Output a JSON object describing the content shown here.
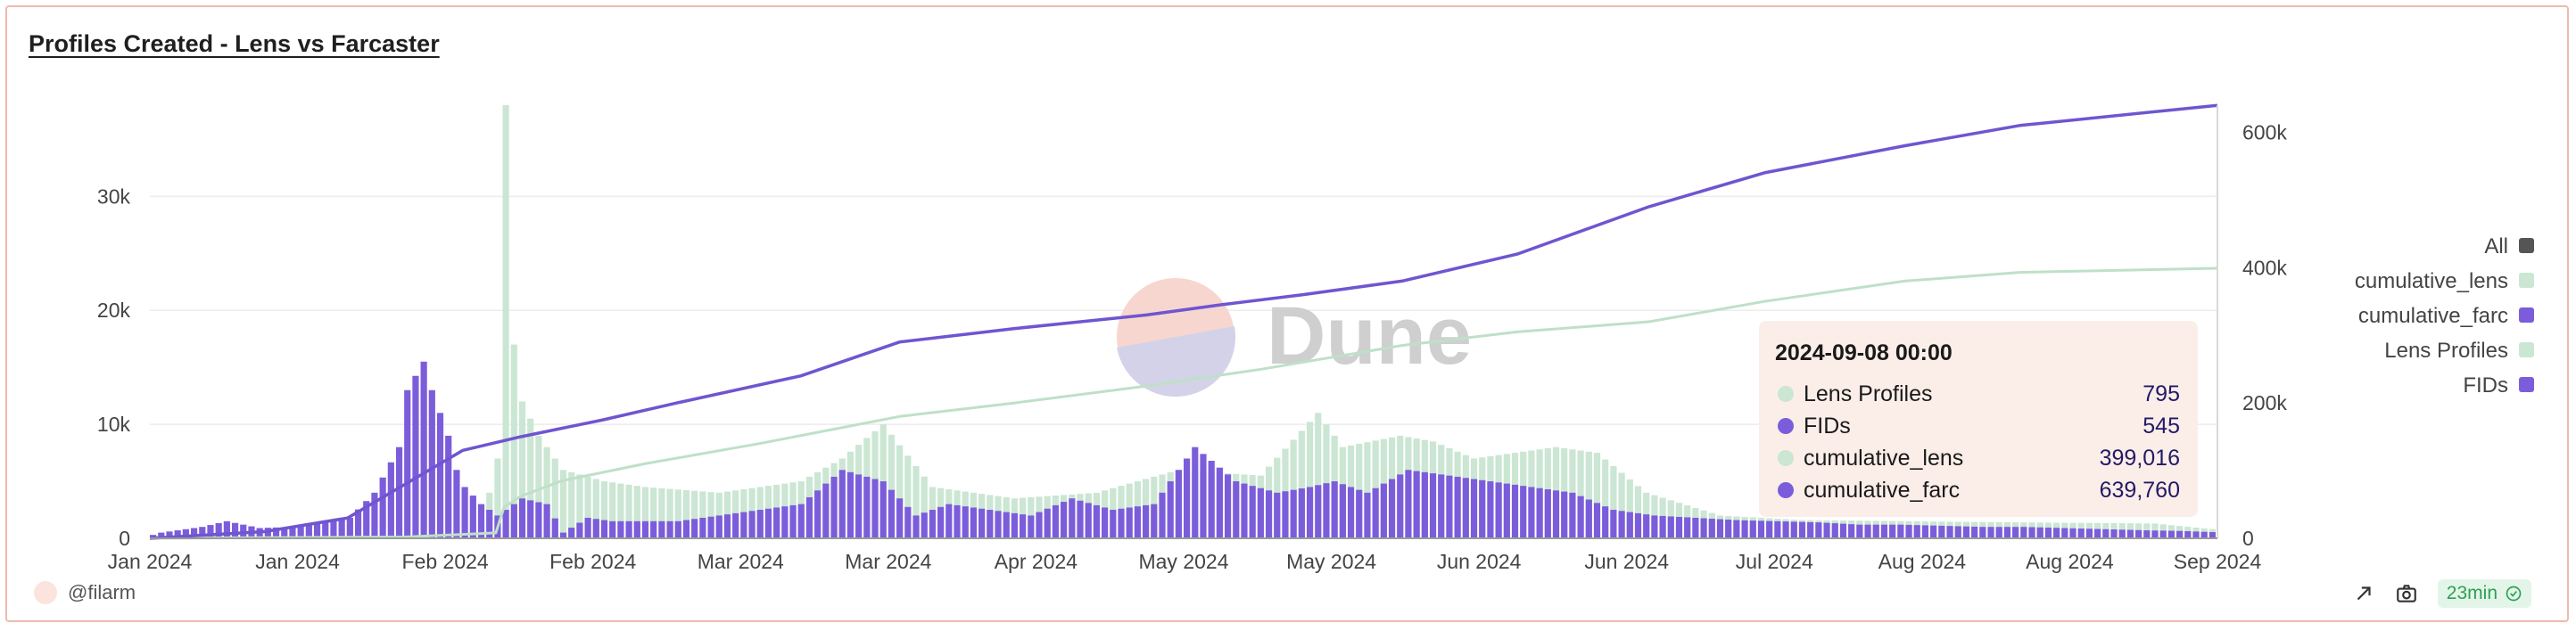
{
  "title": "Profiles Created - Lens vs Farcaster",
  "watermark": "Dune",
  "author": "@filarm",
  "refresh": "23min",
  "icons": [
    "share-icon",
    "camera-icon",
    "check-circle-icon"
  ],
  "colors": {
    "fids": "#7b5ddb",
    "lens_profiles": "#cbe6d3",
    "cumulative_farc": "#6f55d0",
    "cumulative_lens": "#c9e3cf",
    "tooltip_bg": "#fbeee9",
    "all_swatch": "#555555"
  },
  "legend": [
    {
      "label": "All",
      "color": "#555555"
    },
    {
      "label": "cumulative_lens",
      "color": "#cbe6d3"
    },
    {
      "label": "cumulative_farc",
      "color": "#7b5ddb"
    },
    {
      "label": "Lens Profiles",
      "color": "#cbe6d3"
    },
    {
      "label": "FIDs",
      "color": "#7b5ddb"
    }
  ],
  "tooltip": {
    "date": "2024-09-08 00:00",
    "rows": [
      {
        "label": "Lens Profiles",
        "value": "795",
        "color": "#cbe6d3"
      },
      {
        "label": "FIDs",
        "value": "545",
        "color": "#7b5ddb"
      },
      {
        "label": "cumulative_lens",
        "value": "399,016",
        "color": "#cbe6d3"
      },
      {
        "label": "cumulative_farc",
        "value": "639,760",
        "color": "#7b5ddb"
      }
    ]
  },
  "chart_data": {
    "type": "bar",
    "x_tick_labels": [
      "Jan 2024",
      "Jan 2024",
      "Feb 2024",
      "Feb 2024",
      "Mar 2024",
      "Mar 2024",
      "Apr 2024",
      "May 2024",
      "May 2024",
      "Jun 2024",
      "Jun 2024",
      "Jul 2024",
      "Aug 2024",
      "Aug 2024",
      "Sep 2024"
    ],
    "y_left_ticks": [
      "0",
      "10k",
      "20k",
      "30k"
    ],
    "y_left_range": [
      0,
      38000
    ],
    "y_right_ticks": [
      "0",
      "200k",
      "400k",
      "600k"
    ],
    "y_right_range": [
      0,
      640000
    ],
    "x_range": [
      "2024-01-01",
      "2024-09-08"
    ],
    "series": [
      {
        "name": "FIDs",
        "axis": "left",
        "kind": "bar",
        "x": [
          "2024-01-01",
          "2024-01-02",
          "2024-01-04",
          "2024-01-07",
          "2024-01-10",
          "2024-01-14",
          "2024-01-18",
          "2024-01-22",
          "2024-01-25",
          "2024-01-28",
          "2024-01-31",
          "2024-02-01",
          "2024-02-03",
          "2024-02-04",
          "2024-02-06",
          "2024-02-07",
          "2024-02-08",
          "2024-02-10",
          "2024-02-12",
          "2024-02-15",
          "2024-02-18",
          "2024-02-20",
          "2024-02-23",
          "2024-02-26",
          "2024-03-01",
          "2024-03-05",
          "2024-03-10",
          "2024-03-15",
          "2024-03-20",
          "2024-03-25",
          "2024-03-30",
          "2024-04-03",
          "2024-04-07",
          "2024-04-12",
          "2024-04-17",
          "2024-04-22",
          "2024-04-27",
          "2024-05-02",
          "2024-05-07",
          "2024-05-12",
          "2024-05-17",
          "2024-05-21",
          "2024-05-24",
          "2024-05-28",
          "2024-06-02",
          "2024-06-07",
          "2024-06-12",
          "2024-06-17",
          "2024-06-22",
          "2024-06-27",
          "2024-07-02",
          "2024-07-07",
          "2024-07-12",
          "2024-07-17",
          "2024-07-22",
          "2024-07-27",
          "2024-08-01",
          "2024-08-06",
          "2024-08-11",
          "2024-08-16",
          "2024-08-21",
          "2024-08-26",
          "2024-08-31",
          "2024-09-04",
          "2024-09-08"
        ],
        "values": [
          300,
          500,
          700,
          1000,
          1500,
          900,
          1000,
          1400,
          1800,
          4000,
          8000,
          13000,
          15500,
          13000,
          9000,
          6000,
          4500,
          3000,
          2000,
          3500,
          3000,
          500,
          1800,
          1500,
          1500,
          1500,
          2000,
          2500,
          3000,
          6000,
          5000,
          2000,
          3000,
          2500,
          2000,
          3500,
          2500,
          3000,
          8000,
          5000,
          4000,
          4500,
          5000,
          4000,
          6000,
          5500,
          5000,
          4500,
          4000,
          2500,
          2000,
          1800,
          1600,
          1500,
          1400,
          1200,
          1200,
          1100,
          1000,
          1000,
          900,
          800,
          700,
          650,
          545
        ]
      },
      {
        "name": "Lens Profiles",
        "axis": "left",
        "kind": "bar",
        "x": [
          "2024-01-01",
          "2024-02-01",
          "2024-02-05",
          "2024-02-10",
          "2024-02-12",
          "2024-02-13",
          "2024-02-14",
          "2024-02-15",
          "2024-02-17",
          "2024-02-20",
          "2024-02-25",
          "2024-03-01",
          "2024-03-10",
          "2024-03-20",
          "2024-03-25",
          "2024-03-30",
          "2024-04-05",
          "2024-04-15",
          "2024-04-25",
          "2024-05-05",
          "2024-05-15",
          "2024-05-22",
          "2024-05-25",
          "2024-06-01",
          "2024-06-05",
          "2024-06-10",
          "2024-06-15",
          "2024-06-20",
          "2024-06-25",
          "2024-07-01",
          "2024-07-10",
          "2024-07-20",
          "2024-08-01",
          "2024-08-15",
          "2024-09-01",
          "2024-09-08"
        ],
        "values": [
          100,
          200,
          300,
          1000,
          7000,
          38000,
          17000,
          12000,
          9000,
          6000,
          5000,
          4500,
          4000,
          5000,
          7000,
          10000,
          4500,
          3500,
          4000,
          6000,
          5500,
          11000,
          8000,
          9000,
          8500,
          7000,
          7500,
          8000,
          7500,
          4000,
          2000,
          1600,
          1500,
          1400,
          1300,
          795
        ]
      },
      {
        "name": "cumulative_farc",
        "axis": "right",
        "kind": "line",
        "x": [
          "2024-01-01",
          "2024-01-15",
          "2024-01-25",
          "2024-02-01",
          "2024-02-08",
          "2024-02-15",
          "2024-02-25",
          "2024-03-05",
          "2024-03-20",
          "2024-04-01",
          "2024-04-15",
          "2024-05-01",
          "2024-05-10",
          "2024-05-20",
          "2024-06-01",
          "2024-06-15",
          "2024-07-01",
          "2024-07-15",
          "2024-08-01",
          "2024-08-15",
          "2024-09-08"
        ],
        "values": [
          0,
          10000,
          30000,
          80000,
          130000,
          150000,
          175000,
          200000,
          240000,
          290000,
          310000,
          330000,
          345000,
          360000,
          380000,
          420000,
          490000,
          540000,
          580000,
          610000,
          639760
        ]
      },
      {
        "name": "cumulative_lens",
        "axis": "right",
        "kind": "line",
        "x": [
          "2024-01-01",
          "2024-02-01",
          "2024-02-12",
          "2024-02-13",
          "2024-02-15",
          "2024-02-20",
          "2024-03-01",
          "2024-03-15",
          "2024-04-01",
          "2024-04-15",
          "2024-05-01",
          "2024-05-15",
          "2024-06-01",
          "2024-06-15",
          "2024-07-01",
          "2024-07-15",
          "2024-08-01",
          "2024-08-15",
          "2024-09-08"
        ],
        "values": [
          0,
          2000,
          8000,
          46000,
          62000,
          85000,
          110000,
          140000,
          180000,
          200000,
          225000,
          250000,
          285000,
          305000,
          320000,
          350000,
          380000,
          393000,
          399016
        ]
      }
    ]
  }
}
